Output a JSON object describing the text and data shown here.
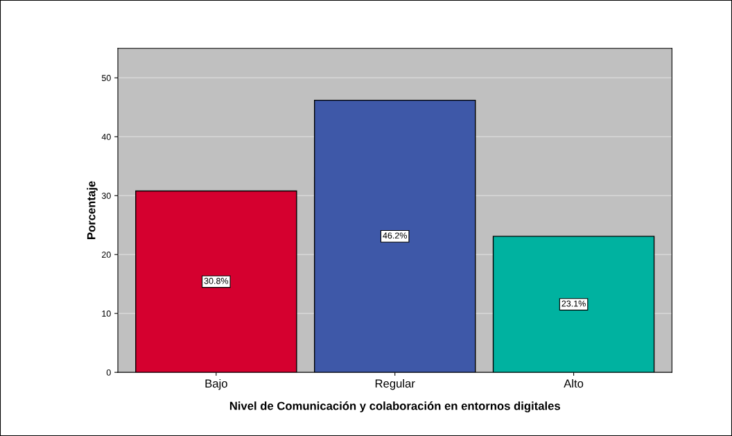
{
  "chart_data": {
    "type": "bar",
    "xlabel": "Nivel de Comunicación y colaboración en entornos digitales",
    "ylabel": "Porcentaje",
    "categories": [
      "Bajo",
      "Regular",
      "Alto"
    ],
    "values": [
      30.8,
      46.2,
      23.1
    ],
    "colors": [
      "#d5002f",
      "#3e58a8",
      "#00b2a0"
    ],
    "value_labels": [
      "30.8%",
      "46.2%",
      "23.1%"
    ],
    "ylim": [
      0,
      55
    ],
    "yticks": [
      0,
      10,
      20,
      30,
      40,
      50
    ],
    "grid": "y"
  }
}
